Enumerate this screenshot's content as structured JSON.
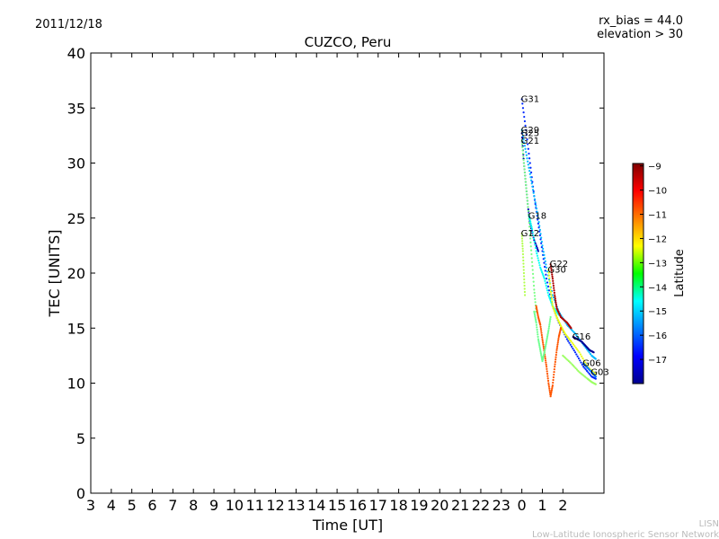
{
  "header": {
    "date": "2011/12/18",
    "rx_bias": "rx_bias = 44.0",
    "elevation": "elevation > 30"
  },
  "footer": {
    "line1": "LISN",
    "line2": "Low-Latitude Ionospheric Sensor Network"
  },
  "colorbar": {
    "label": "Latitude",
    "ticks": [
      -9,
      -10,
      -11,
      -12,
      -13,
      -14,
      -15,
      -16,
      -17
    ],
    "range": [
      -18,
      -8.9
    ]
  },
  "chart_data": {
    "type": "scatter",
    "title": "CUZCO, Peru",
    "xlabel": "Time [UT]",
    "ylabel": "TEC [UNITS]",
    "x_tick_labels": [
      "3",
      "4",
      "5",
      "6",
      "7",
      "8",
      "9",
      "10",
      "11",
      "12",
      "13",
      "14",
      "15",
      "16",
      "17",
      "18",
      "19",
      "20",
      "21",
      "22",
      "23",
      "0",
      "1",
      "2"
    ],
    "xlim": [
      3,
      28
    ],
    "ylim": [
      0,
      40
    ],
    "y_ticks": [
      0,
      5,
      10,
      15,
      20,
      25,
      30,
      35,
      40
    ],
    "series": [
      {
        "name": "G31",
        "label_at": [
          24.0,
          35.8
        ],
        "lat": -16.5,
        "points": [
          [
            24.0,
            35.8
          ],
          [
            24.2,
            33.0
          ],
          [
            24.4,
            30.0
          ],
          [
            24.6,
            27.0
          ],
          [
            24.8,
            24.5
          ],
          [
            25.0,
            22.0
          ],
          [
            25.2,
            19.5
          ],
          [
            25.5,
            17.0
          ],
          [
            25.8,
            15.5
          ],
          [
            26.2,
            14.0
          ],
          [
            26.6,
            12.8
          ],
          [
            27.0,
            11.5
          ],
          [
            27.4,
            10.6
          ],
          [
            27.6,
            10.4
          ]
        ]
      },
      {
        "name": "G29",
        "label_at": [
          24.0,
          33.0
        ],
        "lat": -15.2,
        "points": [
          [
            24.0,
            33.0
          ],
          [
            24.2,
            31.0
          ],
          [
            24.4,
            29.0
          ],
          [
            24.6,
            27.0
          ],
          [
            24.8,
            25.0
          ],
          [
            25.0,
            22.5
          ],
          [
            25.2,
            20.5
          ],
          [
            25.5,
            18.0
          ],
          [
            25.8,
            16.5
          ],
          [
            26.2,
            15.3
          ],
          [
            26.6,
            14.5
          ],
          [
            27.0,
            13.5
          ],
          [
            27.4,
            12.5
          ],
          [
            27.6,
            12.2
          ]
        ]
      },
      {
        "name": "G25",
        "label_at": [
          24.0,
          32.7
        ],
        "lat": -17.5,
        "points": [
          [
            24.0,
            32.7
          ],
          [
            24.1,
            30.0
          ],
          [
            24.2,
            28.0
          ],
          [
            24.3,
            26.0
          ],
          [
            24.4,
            24.5
          ],
          [
            24.6,
            23.0
          ],
          [
            24.8,
            22.0
          ]
        ]
      },
      {
        "name": "G21",
        "label_at": [
          24.0,
          32.0
        ],
        "lat": -13.5,
        "points": [
          [
            24.0,
            32.0
          ],
          [
            24.1,
            30.0
          ],
          [
            24.2,
            28.0
          ],
          [
            24.3,
            26.0
          ],
          [
            24.4,
            23.5
          ],
          [
            24.5,
            21.0
          ],
          [
            24.6,
            18.5
          ],
          [
            24.7,
            16.5
          ]
        ]
      },
      {
        "name": "G18",
        "label_at": [
          24.35,
          25.2
        ],
        "lat": -14.5,
        "points": [
          [
            24.35,
            25.2
          ],
          [
            24.5,
            24.0
          ],
          [
            24.7,
            22.0
          ],
          [
            24.9,
            20.5
          ],
          [
            25.1,
            19.5
          ],
          [
            25.3,
            18.0
          ],
          [
            25.5,
            17.0
          ],
          [
            25.8,
            16.2
          ]
        ]
      },
      {
        "name": "G12",
        "label_at": [
          24.0,
          23.6
        ],
        "lat": -13.0,
        "points": [
          [
            24.0,
            23.6
          ],
          [
            24.05,
            22.0
          ],
          [
            24.1,
            20.0
          ],
          [
            24.15,
            18.0
          ]
        ]
      },
      {
        "name": "G22",
        "label_at": [
          25.4,
          20.8
        ],
        "lat": -9.3,
        "points": [
          [
            25.4,
            20.8
          ],
          [
            25.5,
            19.5
          ],
          [
            25.6,
            18.0
          ],
          [
            25.7,
            16.8
          ],
          [
            25.9,
            16.0
          ],
          [
            26.2,
            15.5
          ],
          [
            26.4,
            15.0
          ]
        ]
      },
      {
        "name": "G30",
        "label_at": [
          25.3,
          20.3
        ],
        "lat": -12.5,
        "points": [
          [
            25.3,
            20.3
          ],
          [
            25.4,
            18.5
          ],
          [
            25.5,
            17.0
          ],
          [
            25.7,
            16.0
          ],
          [
            25.9,
            15.2
          ],
          [
            26.1,
            14.5
          ],
          [
            26.4,
            13.8
          ],
          [
            26.8,
            12.8
          ],
          [
            27.2,
            11.5
          ],
          [
            27.6,
            10.8
          ]
        ]
      },
      {
        "name": "G16",
        "label_at": [
          26.5,
          14.2
        ],
        "lat": -17.8,
        "points": [
          [
            26.5,
            14.2
          ],
          [
            26.7,
            14.0
          ],
          [
            26.9,
            13.8
          ],
          [
            27.1,
            13.4
          ],
          [
            27.3,
            13.0
          ],
          [
            27.5,
            12.8
          ]
        ]
      },
      {
        "name": "G06",
        "label_at": [
          27.0,
          11.8
        ],
        "lat": -15.8,
        "points": [
          [
            27.0,
            11.8
          ],
          [
            27.2,
            11.4
          ],
          [
            27.4,
            11.0
          ],
          [
            27.6,
            10.6
          ]
        ]
      },
      {
        "name": "G03",
        "label_at": [
          27.4,
          11.0
        ],
        "lat": -13.2,
        "points": [
          [
            26.0,
            12.5
          ],
          [
            26.4,
            11.8
          ],
          [
            26.8,
            11.0
          ],
          [
            27.2,
            10.4
          ],
          [
            27.4,
            10.1
          ],
          [
            27.6,
            9.9
          ]
        ]
      },
      {
        "name": "",
        "label_at": null,
        "lat": -10.8,
        "points": [
          [
            24.7,
            17.0
          ],
          [
            24.8,
            16.0
          ],
          [
            24.9,
            15.3
          ],
          [
            25.0,
            14.0
          ],
          [
            25.1,
            12.8
          ],
          [
            25.2,
            11.5
          ],
          [
            25.3,
            10.0
          ],
          [
            25.4,
            8.8
          ],
          [
            25.5,
            9.8
          ],
          [
            25.6,
            11.5
          ],
          [
            25.7,
            13.0
          ],
          [
            25.8,
            14.2
          ],
          [
            25.9,
            15.0
          ]
        ]
      },
      {
        "name": "",
        "label_at": null,
        "lat": -13.6,
        "points": [
          [
            24.6,
            16.5
          ],
          [
            24.7,
            15.5
          ],
          [
            24.8,
            14.0
          ],
          [
            24.9,
            13.0
          ],
          [
            25.0,
            12.0
          ],
          [
            25.1,
            12.8
          ],
          [
            25.2,
            13.8
          ],
          [
            25.3,
            14.8
          ],
          [
            25.4,
            16.0
          ]
        ]
      }
    ]
  }
}
